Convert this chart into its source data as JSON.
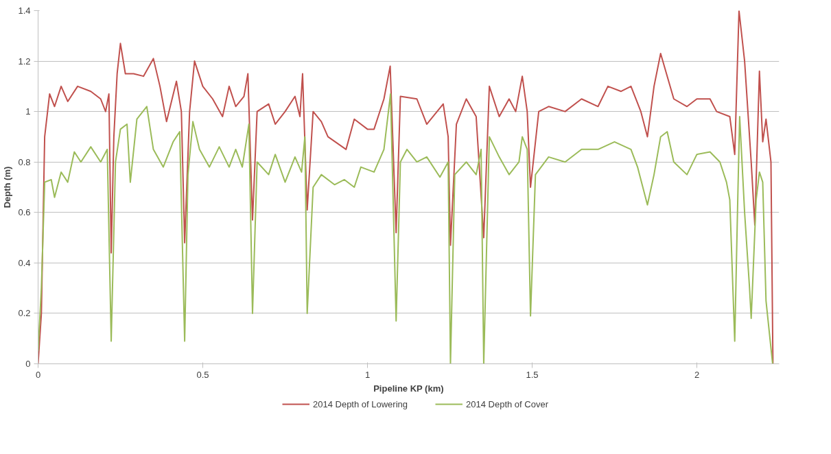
{
  "chart_data": {
    "type": "line",
    "xlabel": "Pipeline KP (km)",
    "ylabel": "Depth (m)",
    "xlim": [
      0,
      2.25
    ],
    "xticks": [
      0,
      0.5,
      1,
      1.5,
      2
    ],
    "ylim": [
      0,
      1.4
    ],
    "yticks": [
      0,
      0.2,
      0.4,
      0.6,
      0.8,
      1,
      1.2,
      1.4
    ],
    "grid": "y",
    "legend": "bottom",
    "marker": "none",
    "line_style": "solid",
    "series": [
      {
        "name": "2014 Depth of Lowering",
        "color": "#c0504d",
        "x": [
          0,
          0.01,
          0.02,
          0.035,
          0.05,
          0.07,
          0.09,
          0.12,
          0.16,
          0.19,
          0.205,
          0.215,
          0.222,
          0.23,
          0.24,
          0.25,
          0.265,
          0.29,
          0.32,
          0.35,
          0.37,
          0.39,
          0.42,
          0.435,
          0.445,
          0.46,
          0.475,
          0.5,
          0.53,
          0.56,
          0.58,
          0.6,
          0.625,
          0.637,
          0.651,
          0.665,
          0.7,
          0.72,
          0.75,
          0.78,
          0.795,
          0.803,
          0.817,
          0.835,
          0.86,
          0.88,
          0.935,
          0.96,
          1.0,
          1.02,
          1.05,
          1.069,
          1.087,
          1.1,
          1.15,
          1.18,
          1.23,
          1.245,
          1.252,
          1.27,
          1.3,
          1.33,
          1.353,
          1.37,
          1.4,
          1.43,
          1.45,
          1.47,
          1.485,
          1.495,
          1.52,
          1.55,
          1.6,
          1.65,
          1.7,
          1.73,
          1.77,
          1.8,
          1.83,
          1.85,
          1.87,
          1.89,
          1.93,
          1.97,
          2.0,
          2.04,
          2.06,
          2.1,
          2.115,
          2.128,
          2.145,
          2.165,
          2.176,
          2.19,
          2.2,
          2.21,
          2.225,
          2.231
        ],
        "values": [
          0,
          0.2,
          0.9,
          1.07,
          1.02,
          1.1,
          1.04,
          1.1,
          1.08,
          1.05,
          1.0,
          1.07,
          0.44,
          0.9,
          1.15,
          1.27,
          1.15,
          1.15,
          1.14,
          1.21,
          1.1,
          0.96,
          1.12,
          1.0,
          0.48,
          1.0,
          1.2,
          1.1,
          1.05,
          0.98,
          1.1,
          1.02,
          1.06,
          1.15,
          0.57,
          1.0,
          1.03,
          0.95,
          1.0,
          1.06,
          0.98,
          1.15,
          0.61,
          1.0,
          0.96,
          0.9,
          0.85,
          0.97,
          0.93,
          0.93,
          1.05,
          1.18,
          0.52,
          1.06,
          1.05,
          0.95,
          1.03,
          0.9,
          0.47,
          0.95,
          1.05,
          0.98,
          0.5,
          1.1,
          0.98,
          1.05,
          1.0,
          1.14,
          1.0,
          0.7,
          1.0,
          1.02,
          1.0,
          1.05,
          1.02,
          1.1,
          1.08,
          1.1,
          1.0,
          0.9,
          1.1,
          1.23,
          1.05,
          1.02,
          1.05,
          1.05,
          1.0,
          0.98,
          0.83,
          1.4,
          1.2,
          0.8,
          0.55,
          1.16,
          0.88,
          0.97,
          0.8,
          0.0
        ]
      },
      {
        "name": "2014 Depth of Cover",
        "color": "#9bbb59",
        "x": [
          0,
          0.01,
          0.02,
          0.04,
          0.05,
          0.07,
          0.09,
          0.11,
          0.13,
          0.16,
          0.19,
          0.21,
          0.222,
          0.235,
          0.25,
          0.27,
          0.28,
          0.3,
          0.33,
          0.35,
          0.38,
          0.41,
          0.43,
          0.445,
          0.455,
          0.47,
          0.49,
          0.52,
          0.55,
          0.58,
          0.6,
          0.62,
          0.64,
          0.651,
          0.665,
          0.7,
          0.72,
          0.75,
          0.78,
          0.8,
          0.81,
          0.817,
          0.835,
          0.86,
          0.9,
          0.93,
          0.96,
          0.98,
          1.02,
          1.05,
          1.07,
          1.087,
          1.1,
          1.12,
          1.15,
          1.18,
          1.22,
          1.245,
          1.252,
          1.265,
          1.3,
          1.33,
          1.345,
          1.353,
          1.37,
          1.4,
          1.43,
          1.46,
          1.47,
          1.485,
          1.495,
          1.51,
          1.55,
          1.6,
          1.65,
          1.7,
          1.75,
          1.8,
          1.82,
          1.85,
          1.87,
          1.89,
          1.91,
          1.93,
          1.97,
          2.0,
          2.04,
          2.07,
          2.09,
          2.1,
          2.115,
          2.125,
          2.13,
          2.145,
          2.16,
          2.165,
          2.18,
          2.19,
          2.2,
          2.21,
          2.23
        ],
        "values": [
          0.05,
          0.3,
          0.72,
          0.73,
          0.66,
          0.76,
          0.72,
          0.84,
          0.8,
          0.86,
          0.8,
          0.85,
          0.09,
          0.8,
          0.93,
          0.95,
          0.72,
          0.97,
          1.02,
          0.85,
          0.78,
          0.88,
          0.92,
          0.09,
          0.75,
          0.96,
          0.85,
          0.78,
          0.86,
          0.78,
          0.85,
          0.78,
          0.95,
          0.2,
          0.8,
          0.75,
          0.83,
          0.72,
          0.82,
          0.76,
          0.9,
          0.2,
          0.7,
          0.75,
          0.71,
          0.73,
          0.7,
          0.78,
          0.76,
          0.85,
          1.07,
          0.17,
          0.8,
          0.85,
          0.8,
          0.82,
          0.74,
          0.8,
          0.0,
          0.75,
          0.8,
          0.75,
          0.85,
          0.0,
          0.9,
          0.82,
          0.75,
          0.8,
          0.9,
          0.85,
          0.19,
          0.75,
          0.82,
          0.8,
          0.85,
          0.85,
          0.88,
          0.85,
          0.78,
          0.63,
          0.75,
          0.9,
          0.92,
          0.8,
          0.75,
          0.83,
          0.84,
          0.8,
          0.72,
          0.65,
          0.09,
          0.7,
          0.98,
          0.6,
          0.3,
          0.18,
          0.65,
          0.76,
          0.72,
          0.25,
          0.0
        ]
      }
    ]
  }
}
